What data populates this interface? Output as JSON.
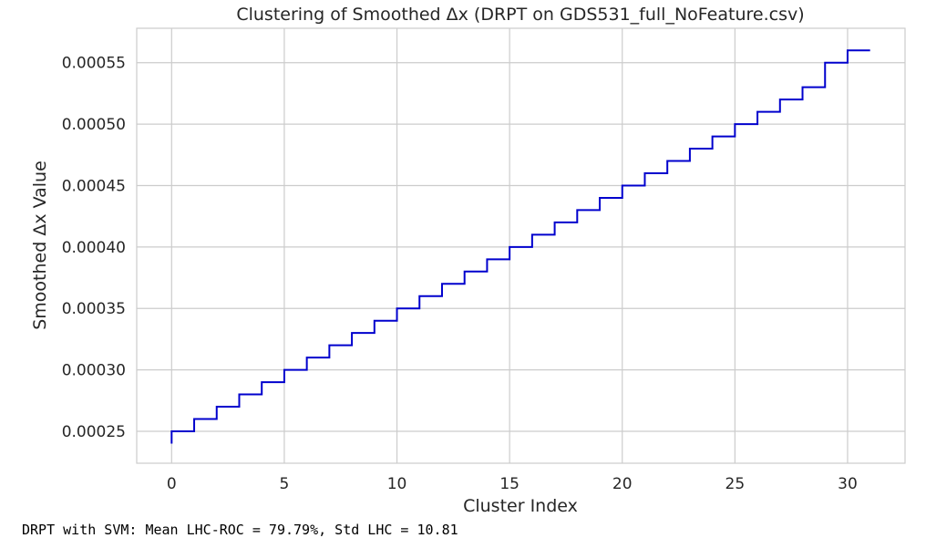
{
  "chart_data": {
    "type": "line",
    "drawstyle": "steps-post",
    "title": "Clustering of Smoothed Δx (DRPT on GDS531_full_NoFeature.csv)",
    "xlabel": "Cluster Index",
    "ylabel": "Smoothed Δx Value",
    "xlim": [
      -1.55,
      32.55
    ],
    "ylim": [
      0.000224,
      0.000578
    ],
    "xticks": [
      0,
      5,
      10,
      15,
      20,
      25,
      30
    ],
    "yticks": [
      0.00025,
      0.0003,
      0.00035,
      0.0004,
      0.00045,
      0.0005,
      0.00055
    ],
    "ytick_labels": [
      "0.00025",
      "0.00030",
      "0.00035",
      "0.00040",
      "0.00045",
      "0.00050",
      "0.00055"
    ],
    "grid": true,
    "line_color": "#0000cd",
    "x": [
      0,
      0,
      1,
      2,
      3,
      4,
      5,
      6,
      7,
      8,
      9,
      10,
      11,
      12,
      13,
      14,
      15,
      16,
      17,
      18,
      19,
      20,
      21,
      22,
      23,
      24,
      25,
      26,
      27,
      28,
      29,
      30,
      31
    ],
    "y": [
      0.00024,
      0.00025,
      0.00026,
      0.00027,
      0.00028,
      0.00029,
      0.0003,
      0.00031,
      0.00032,
      0.00033,
      0.00034,
      0.00035,
      0.00036,
      0.00037,
      0.00038,
      0.00039,
      0.0004,
      0.00041,
      0.00042,
      0.00043,
      0.00044,
      0.00045,
      0.00046,
      0.00047,
      0.00048,
      0.00049,
      0.0005,
      0.00051,
      0.00052,
      0.00053,
      0.00055,
      0.00056,
      0.00056
    ]
  },
  "footer_text": "DRPT with SVM: Mean LHC-ROC = 79.79%, Std LHC = 10.81"
}
